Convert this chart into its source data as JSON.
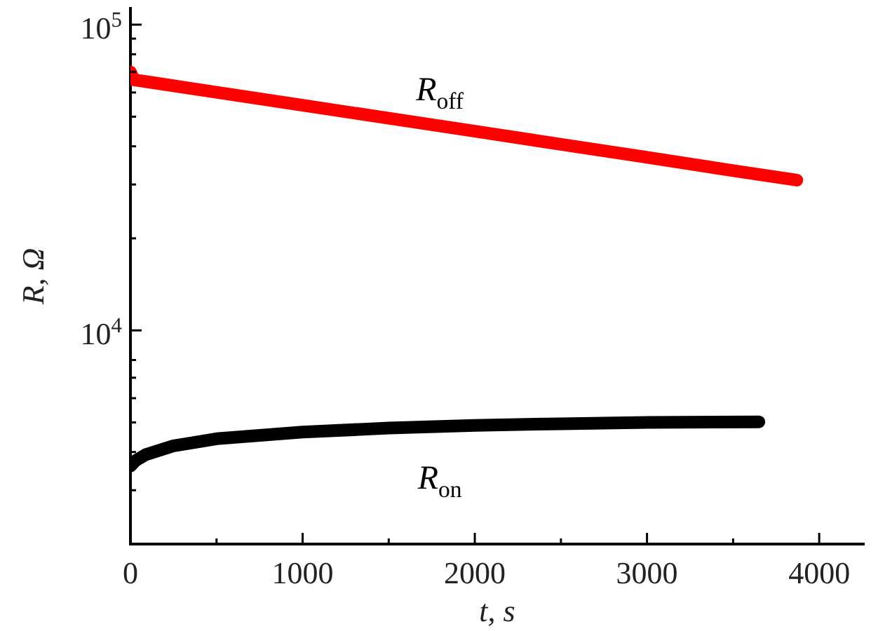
{
  "chart_data": {
    "type": "line",
    "xlabel": "t, s",
    "ylabel": "R, Ω",
    "log": "y",
    "grid": false,
    "legend": false,
    "xlim": [
      0,
      4260
    ],
    "xticks": [
      0,
      {
        "value": 500,
        "label": null
      },
      1000,
      {
        "value": 1500,
        "label": null
      },
      2000,
      {
        "value": 2500,
        "label": null
      },
      3000,
      {
        "value": 3500,
        "label": null
      },
      4000
    ],
    "ylim": [
      2000,
      113000
    ],
    "yticks": [
      {
        "value": 3000,
        "label": null
      },
      {
        "value": 4000,
        "label": null
      },
      {
        "value": 5000,
        "label": null
      },
      {
        "value": 6000,
        "label": null
      },
      {
        "value": 7000,
        "label": null
      },
      {
        "value": 8000,
        "label": null
      },
      {
        "value": 10000,
        "label": "10$^{4}$"
      },
      {
        "value": 20000,
        "label": null
      },
      {
        "value": 30000,
        "label": null
      },
      {
        "value": 40000,
        "label": null
      },
      {
        "value": 50000,
        "label": null
      },
      {
        "value": 60000,
        "label": null
      },
      {
        "value": 70000,
        "label": null
      },
      {
        "value": 80000,
        "label": null
      },
      {
        "value": 90000,
        "label": null
      },
      {
        "value": 100000,
        "label": "10$^{5}$"
      }
    ],
    "series": [
      {
        "name": "R$_{off}$",
        "color": "#ff0000",
        "x": [
          0,
          20,
          100,
          500,
          1000,
          1500,
          2000,
          2500,
          3000,
          3500,
          3870
        ],
        "values": [
          70000,
          66000,
          65000,
          60100,
          54500,
          49400,
          44800,
          40600,
          36800,
          33300,
          31000
        ]
      },
      {
        "name": "R$_{on}$",
        "color": "#000000",
        "x": [
          0,
          30,
          90,
          250,
          500,
          1000,
          1500,
          2000,
          2500,
          3000,
          3650
        ],
        "values": [
          3600,
          3750,
          3925,
          4190,
          4420,
          4650,
          4790,
          4890,
          4950,
          5000,
          5020
        ]
      }
    ]
  }
}
